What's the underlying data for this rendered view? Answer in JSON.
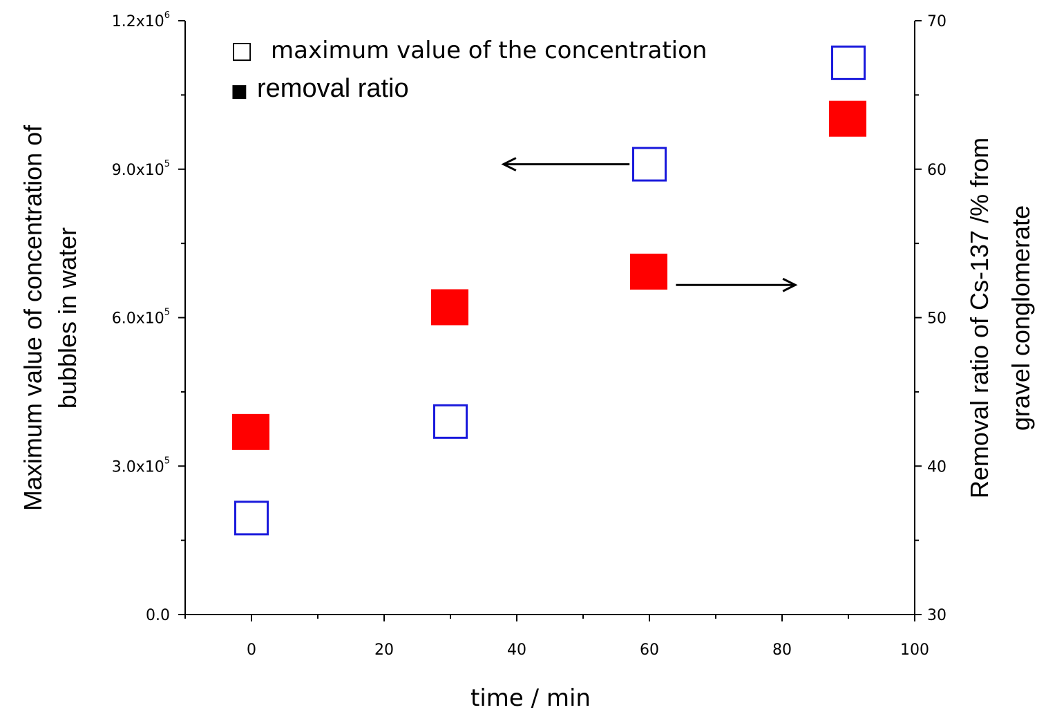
{
  "chart_data": {
    "type": "scatter",
    "x": [
      0,
      30,
      60,
      90
    ],
    "series": [
      {
        "name": "maximum value of the concentration",
        "axis": "left",
        "values": [
          195000,
          390000,
          910000,
          1115000
        ],
        "marker": "open-square",
        "color": "#1a1adc"
      },
      {
        "name": "removal ratio",
        "axis": "right",
        "values": [
          42.3,
          50.7,
          53.1,
          63.4
        ],
        "marker": "filled-square",
        "color": "#ff0000"
      }
    ],
    "xlabel": "time / min",
    "ylabel_left": [
      "Maximum value of concentration of",
      "bubbles in water"
    ],
    "ylabel_right": [
      "Removal ratio of Cs-137 /% from",
      "gravel conglomerate"
    ],
    "xlim": [
      -10,
      100
    ],
    "ylim_left": [
      0,
      1200000
    ],
    "ylim_right": [
      30,
      70
    ],
    "x_ticks": [
      0,
      20,
      40,
      60,
      80,
      100
    ],
    "y_left_ticks": [
      {
        "mantissa": "0.0",
        "exponent": "",
        "value": 0
      },
      {
        "mantissa": "3.0x10",
        "exponent": "5",
        "value": 300000
      },
      {
        "mantissa": "6.0x10",
        "exponent": "5",
        "value": 600000
      },
      {
        "mantissa": "9.0x10",
        "exponent": "5",
        "value": 900000
      },
      {
        "mantissa": "1.2x10",
        "exponent": "6",
        "value": 1200000
      }
    ],
    "y_right_ticks": [
      30,
      40,
      50,
      60,
      70
    ],
    "legend": [
      {
        "symbol": "□",
        "label": "maximum value of the concentration"
      },
      {
        "symbol": "■",
        "label": "removal ratio"
      }
    ],
    "annotations": [
      {
        "type": "arrow",
        "direction": "left",
        "series": "maximum value of the concentration",
        "from": [
          57,
          910000
        ],
        "to": [
          38,
          910000
        ]
      },
      {
        "type": "arrow",
        "direction": "right",
        "series": "removal ratio",
        "from": [
          64,
          52.2
        ],
        "to": [
          82,
          52.2
        ]
      }
    ],
    "grid": false,
    "legend_position": "top-left"
  }
}
